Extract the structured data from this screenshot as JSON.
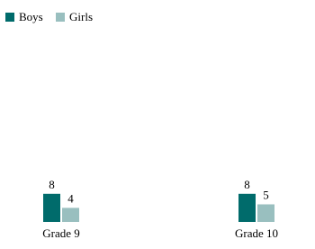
{
  "chart_data": {
    "type": "bar",
    "categories": [
      "Grade 9",
      "Grade 10"
    ],
    "series": [
      {
        "name": "Boys",
        "color": "#006b6b",
        "values": [
          8,
          8
        ]
      },
      {
        "name": "Girls",
        "color": "#99bfbf",
        "values": [
          4,
          5
        ]
      }
    ]
  }
}
